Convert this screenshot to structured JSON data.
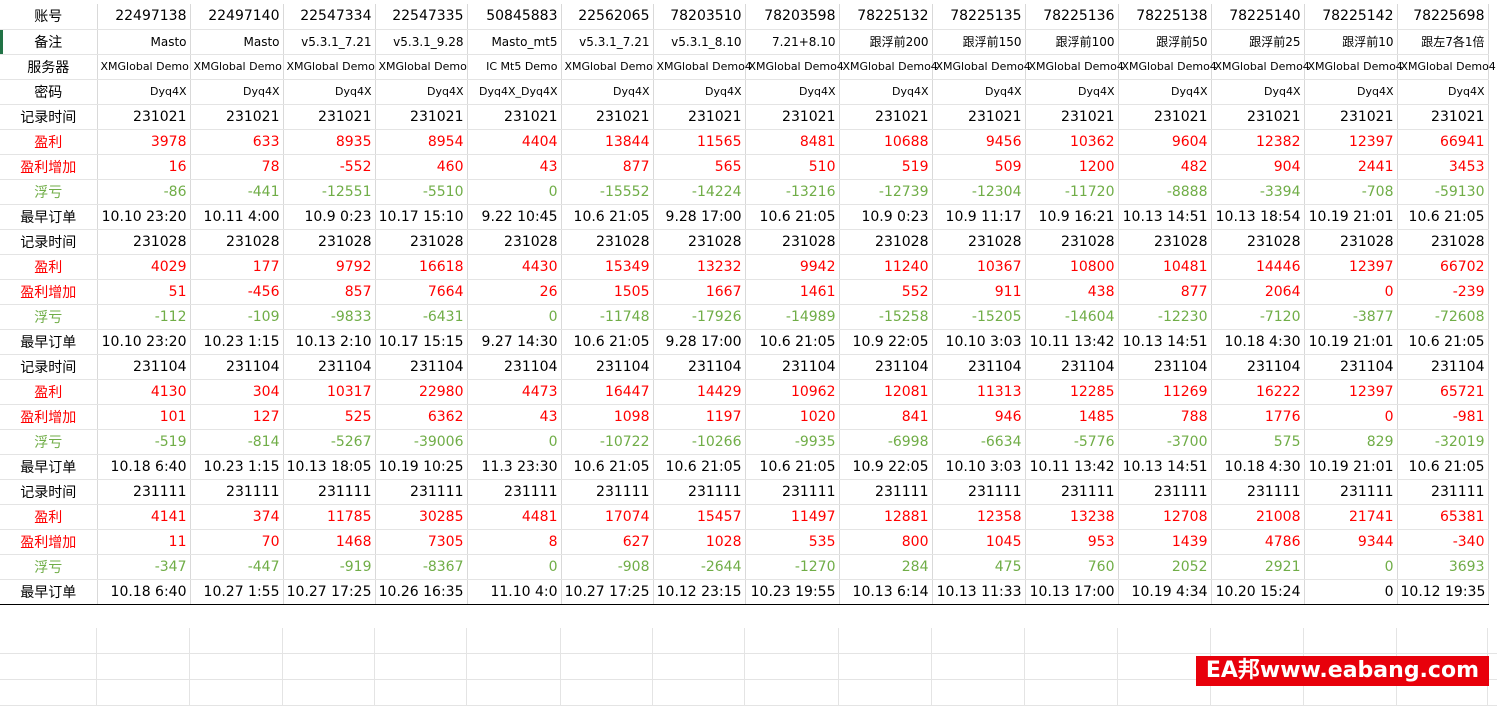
{
  "columns": [
    "账号",
    "22497138",
    "22497140",
    "22547334",
    "22547335",
    "50845883",
    "22562065",
    "78203510",
    "78203598",
    "78225132",
    "78225135",
    "78225136",
    "78225138",
    "78225140",
    "78225142",
    "78225698"
  ],
  "header": {
    "beizhu_label": "备注",
    "beizhu": [
      "Masto",
      "Masto",
      "v5.3.1_7.21",
      "v5.3.1_9.28",
      "Masto_mt5",
      "v5.3.1_7.21",
      "v5.3.1_8.10",
      "7.21+8.10",
      "跟浮前200",
      "跟浮前150",
      "跟浮前100",
      "跟浮前50",
      "跟浮前25",
      "跟浮前10",
      "跟左7各1倍"
    ],
    "server_label": "服务器",
    "server": [
      "XMGlobal Demo",
      "XMGlobal Demo",
      "XMGlobal Demo",
      "XMGlobal Demo",
      "IC Mt5 Demo",
      "XMGlobal Demo",
      "XMGlobal Demo4",
      "XMGlobal Demo4",
      "XMGlobal Demo4",
      "XMGlobal Demo4",
      "XMGlobal Demo4",
      "XMGlobal Demo4",
      "XMGlobal Demo4",
      "XMGlobal Demo4",
      "XMGlobal Demo4"
    ],
    "password_label": "密码",
    "password": [
      "Dyq4X",
      "Dyq4X",
      "Dyq4X",
      "Dyq4X",
      "Dyq4X_Dyq4X",
      "Dyq4X",
      "Dyq4X",
      "Dyq4X",
      "Dyq4X",
      "Dyq4X",
      "Dyq4X",
      "Dyq4X",
      "Dyq4X",
      "Dyq4X",
      "Dyq4X"
    ]
  },
  "row_labels": {
    "record_time": "记录时间",
    "profit": "盈利",
    "profit_increase": "盈利增加",
    "floating_loss": "浮亏",
    "earliest_order": "最早订单"
  },
  "blocks": [
    {
      "record_time": [
        "231021",
        "231021",
        "231021",
        "231021",
        "231021",
        "231021",
        "231021",
        "231021",
        "231021",
        "231021",
        "231021",
        "231021",
        "231021",
        "231021",
        "231021"
      ],
      "profit": [
        "3978",
        "633",
        "8935",
        "8954",
        "4404",
        "13844",
        "11565",
        "8481",
        "10688",
        "9456",
        "10362",
        "9604",
        "12382",
        "12397",
        "66941"
      ],
      "profit_increase": [
        "16",
        "78",
        "-552",
        "460",
        "43",
        "877",
        "565",
        "510",
        "519",
        "509",
        "1200",
        "482",
        "904",
        "2441",
        "3453"
      ],
      "floating_loss": [
        "-86",
        "-441",
        "-12551",
        "-5510",
        "0",
        "-15552",
        "-14224",
        "-13216",
        "-12739",
        "-12304",
        "-11720",
        "-8888",
        "-3394",
        "-708",
        "-59130"
      ],
      "earliest_order": [
        "10.10 23:20",
        "10.11 4:00",
        "10.9 0:23",
        "10.17 15:10",
        "9.22 10:45",
        "10.6 21:05",
        "9.28 17:00",
        "10.6 21:05",
        "10.9 0:23",
        "10.9 11:17",
        "10.9 16:21",
        "10.13 14:51",
        "10.13 18:54",
        "10.19 21:01",
        "10.6 21:05"
      ]
    },
    {
      "record_time": [
        "231028",
        "231028",
        "231028",
        "231028",
        "231028",
        "231028",
        "231028",
        "231028",
        "231028",
        "231028",
        "231028",
        "231028",
        "231028",
        "231028",
        "231028"
      ],
      "profit": [
        "4029",
        "177",
        "9792",
        "16618",
        "4430",
        "15349",
        "13232",
        "9942",
        "11240",
        "10367",
        "10800",
        "10481",
        "14446",
        "12397",
        "66702"
      ],
      "profit_increase": [
        "51",
        "-456",
        "857",
        "7664",
        "26",
        "1505",
        "1667",
        "1461",
        "552",
        "911",
        "438",
        "877",
        "2064",
        "0",
        "-239"
      ],
      "floating_loss": [
        "-112",
        "-109",
        "-9833",
        "-6431",
        "0",
        "-11748",
        "-17926",
        "-14989",
        "-15258",
        "-15205",
        "-14604",
        "-12230",
        "-7120",
        "-3877",
        "-72608"
      ],
      "earliest_order": [
        "10.10 23:20",
        "10.23 1:15",
        "10.13 2:10",
        "10.17 15:15",
        "9.27 14:30",
        "10.6 21:05",
        "9.28 17:00",
        "10.6 21:05",
        "10.9 22:05",
        "10.10 3:03",
        "10.11 13:42",
        "10.13 14:51",
        "10.18 4:30",
        "10.19 21:01",
        "10.6 21:05"
      ]
    },
    {
      "record_time": [
        "231104",
        "231104",
        "231104",
        "231104",
        "231104",
        "231104",
        "231104",
        "231104",
        "231104",
        "231104",
        "231104",
        "231104",
        "231104",
        "231104",
        "231104"
      ],
      "profit": [
        "4130",
        "304",
        "10317",
        "22980",
        "4473",
        "16447",
        "14429",
        "10962",
        "12081",
        "11313",
        "12285",
        "11269",
        "16222",
        "12397",
        "65721"
      ],
      "profit_increase": [
        "101",
        "127",
        "525",
        "6362",
        "43",
        "1098",
        "1197",
        "1020",
        "841",
        "946",
        "1485",
        "788",
        "1776",
        "0",
        "-981"
      ],
      "floating_loss": [
        "-519",
        "-814",
        "-5267",
        "-39006",
        "0",
        "-10722",
        "-10266",
        "-9935",
        "-6998",
        "-6634",
        "-5776",
        "-3700",
        "575",
        "829",
        "-32019"
      ],
      "earliest_order": [
        "10.18 6:40",
        "10.23 1:15",
        "10.13 18:05",
        "10.19 10:25",
        "11.3 23:30",
        "10.6 21:05",
        "10.6 21:05",
        "10.6 21:05",
        "10.9 22:05",
        "10.10 3:03",
        "10.11 13:42",
        "10.13 14:51",
        "10.18 4:30",
        "10.19 21:01",
        "10.6 21:05"
      ]
    },
    {
      "record_time": [
        "231111",
        "231111",
        "231111",
        "231111",
        "231111",
        "231111",
        "231111",
        "231111",
        "231111",
        "231111",
        "231111",
        "231111",
        "231111",
        "231111",
        "231111"
      ],
      "profit": [
        "4141",
        "374",
        "11785",
        "30285",
        "4481",
        "17074",
        "15457",
        "11497",
        "12881",
        "12358",
        "13238",
        "12708",
        "21008",
        "21741",
        "65381"
      ],
      "profit_increase": [
        "11",
        "70",
        "1468",
        "7305",
        "8",
        "627",
        "1028",
        "535",
        "800",
        "1045",
        "953",
        "1439",
        "4786",
        "9344",
        "-340"
      ],
      "floating_loss": [
        "-347",
        "-447",
        "-919",
        "-8367",
        "0",
        "-908",
        "-2644",
        "-1270",
        "284",
        "475",
        "760",
        "2052",
        "2921",
        "0",
        "3693"
      ],
      "earliest_order": [
        "10.18 6:40",
        "10.27 1:55",
        "10.27 17:25",
        "10.26 16:35",
        "11.10 4:0",
        "10.27 17:25",
        "10.12 23:15",
        "10.23 19:55",
        "10.13 6:14",
        "10.13 11:33",
        "10.13 17:00",
        "10.19 4:34",
        "10.20 15:24",
        "0",
        "10.12 19:35"
      ]
    }
  ],
  "watermark": "EA邦www.eabang.com",
  "colors": {
    "profit": "#ff0000",
    "floating_loss": "#70ad47",
    "label_red": "#ff0000"
  }
}
